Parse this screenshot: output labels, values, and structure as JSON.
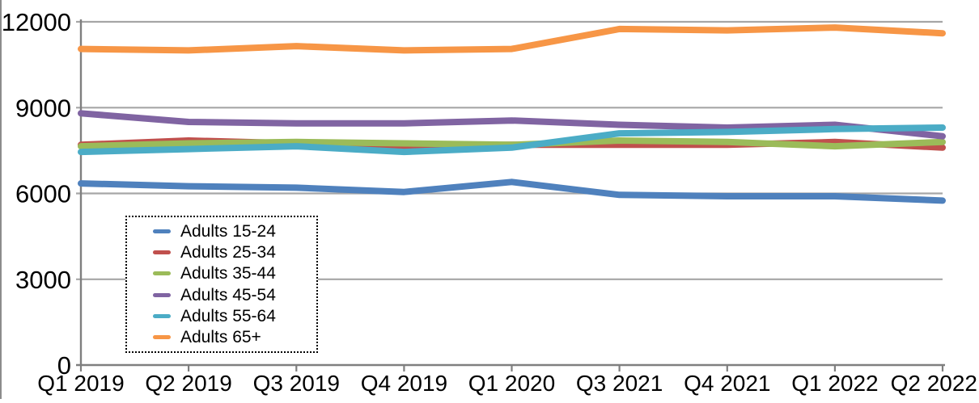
{
  "chart_data": {
    "type": "line",
    "categories": [
      "Q1 2019",
      "Q2 2019",
      "Q3 2019",
      "Q4 2019",
      "Q1 2020",
      "Q3 2021",
      "Q4 2021",
      "Q1 2022",
      "Q2 2022"
    ],
    "series": [
      {
        "name": "Adults 15-24",
        "color": "#4F81BD",
        "values": [
          6350,
          6250,
          6200,
          6050,
          6400,
          5950,
          5900,
          5900,
          5750
        ]
      },
      {
        "name": "Adults 25-34",
        "color": "#C0504D",
        "values": [
          7700,
          7850,
          7750,
          7650,
          7700,
          7700,
          7700,
          7800,
          7600
        ]
      },
      {
        "name": "Adults 35-44",
        "color": "#9BBB59",
        "values": [
          7650,
          7750,
          7800,
          7750,
          7700,
          7850,
          7800,
          7650,
          7800
        ]
      },
      {
        "name": "Adults 45-54",
        "color": "#8064A2",
        "values": [
          8800,
          8500,
          8450,
          8450,
          8550,
          8400,
          8300,
          8400,
          8000
        ]
      },
      {
        "name": "Adults 55-64",
        "color": "#4BACC6",
        "values": [
          7450,
          7550,
          7650,
          7450,
          7600,
          8100,
          8150,
          8250,
          8300
        ]
      },
      {
        "name": "Adults 65+",
        "color": "#F79646",
        "values": [
          11050,
          11000,
          11150,
          11000,
          11050,
          11750,
          11700,
          11800,
          11600
        ]
      }
    ],
    "y_axis": {
      "min": 0,
      "max": 12000,
      "tick_interval": 3000,
      "ticks": [
        0,
        3000,
        6000,
        9000,
        12000
      ],
      "tick_labels": [
        "0",
        "3000",
        "6000",
        "9000",
        "12000"
      ]
    },
    "grid": "horizontal",
    "gridline_color": "#A6A6A6",
    "axis_color": "#7F7F7F",
    "legend": {
      "position": "inside-bottom-left",
      "border_style": "dotted",
      "entries": [
        "Adults 15-24",
        "Adults 25-34",
        "Adults 35-44",
        "Adults 45-54",
        "Adults 55-64",
        "Adults 65+"
      ]
    }
  }
}
